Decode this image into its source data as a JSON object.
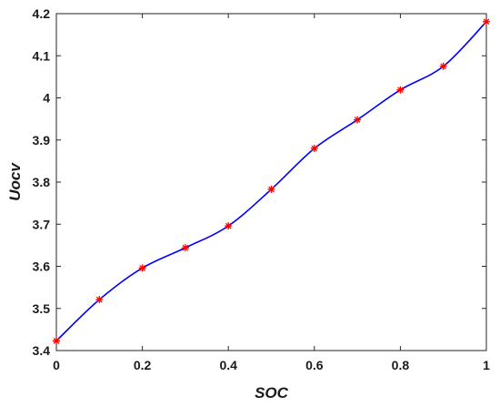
{
  "chart_data": {
    "type": "line",
    "xlabel": "SOC",
    "ylabel": "Uocv",
    "xlim": [
      0,
      1
    ],
    "ylim": [
      3.4,
      4.2
    ],
    "x_ticks": [
      "0",
      "0.2",
      "0.4",
      "0.6",
      "0.8",
      "1"
    ],
    "y_ticks": [
      "3.4",
      "3.5",
      "3.6",
      "3.7",
      "3.8",
      "3.9",
      "4",
      "4.1",
      "4.2"
    ],
    "grid": false,
    "series": [
      {
        "style": "smooth-line",
        "color": "#0000ff",
        "x": [
          0,
          0.1,
          0.2,
          0.3,
          0.4,
          0.5,
          0.6,
          0.7,
          0.8,
          0.9,
          1.0
        ],
        "y": [
          3.423,
          3.521,
          3.596,
          3.644,
          3.696,
          3.783,
          3.88,
          3.948,
          4.019,
          4.075,
          4.181
        ]
      },
      {
        "style": "markers",
        "marker": "asterisk",
        "color": "#ff0000",
        "x": [
          0,
          0.1,
          0.2,
          0.3,
          0.4,
          0.5,
          0.6,
          0.7,
          0.8,
          0.9,
          1.0
        ],
        "y": [
          3.423,
          3.521,
          3.596,
          3.644,
          3.696,
          3.783,
          3.88,
          3.948,
          4.019,
          4.075,
          4.181
        ]
      }
    ]
  }
}
